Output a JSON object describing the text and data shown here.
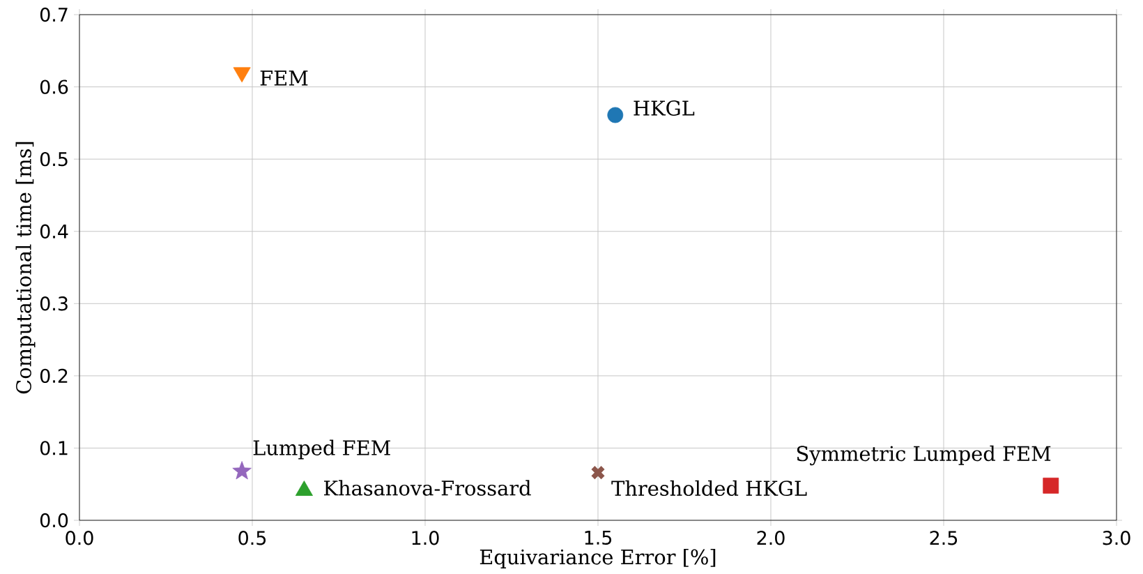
{
  "chart_data": {
    "type": "scatter",
    "xlabel": "Equivariance Error [%]",
    "ylabel": "Computational time [ms]",
    "xlim": [
      0,
      3
    ],
    "ylim": [
      0,
      0.7
    ],
    "xticks": [
      {
        "value": 0,
        "label": "0.0"
      },
      {
        "value": 0.5,
        "label": "0.5"
      },
      {
        "value": 1,
        "label": "1.0"
      },
      {
        "value": 1.5,
        "label": "1.5"
      },
      {
        "value": 2,
        "label": "2.0"
      },
      {
        "value": 2.5,
        "label": "2.5"
      },
      {
        "value": 3,
        "label": "3.0"
      }
    ],
    "yticks": [
      {
        "value": 0,
        "label": "0.0"
      },
      {
        "value": 0.1,
        "label": "0.1"
      },
      {
        "value": 0.2,
        "label": "0.2"
      },
      {
        "value": 0.3,
        "label": "0.3"
      },
      {
        "value": 0.4,
        "label": "0.4"
      },
      {
        "value": 0.5,
        "label": "0.5"
      },
      {
        "value": 0.6,
        "label": "0.6"
      },
      {
        "value": 0.7,
        "label": "0.7"
      }
    ],
    "grid": true,
    "series": [
      {
        "name": "HKGL",
        "color": "#1f77b4",
        "marker": "circle",
        "x": [
          1.55
        ],
        "values": [
          0.561
        ]
      },
      {
        "name": "FEM",
        "color": "#ff7f0e",
        "marker": "triangle_down",
        "x": [
          0.47
        ],
        "values": [
          0.62
        ]
      },
      {
        "name": "Khasanova-Frossard",
        "color": "#2ca02c",
        "marker": "triangle",
        "x": [
          0.65
        ],
        "values": [
          0.041
        ]
      },
      {
        "name": "Symmetric Lumped FEM",
        "color": "#d62728",
        "marker": "square",
        "x": [
          2.81
        ],
        "values": [
          0.048
        ]
      },
      {
        "name": "Lumped FEM",
        "color": "#9467bd",
        "marker": "star",
        "x": [
          0.47
        ],
        "values": [
          0.068
        ]
      },
      {
        "name": "Thresholded HKGL",
        "color": "#8c564b",
        "marker": "cross",
        "x": [
          1.5
        ],
        "values": [
          0.066
        ]
      }
    ]
  }
}
